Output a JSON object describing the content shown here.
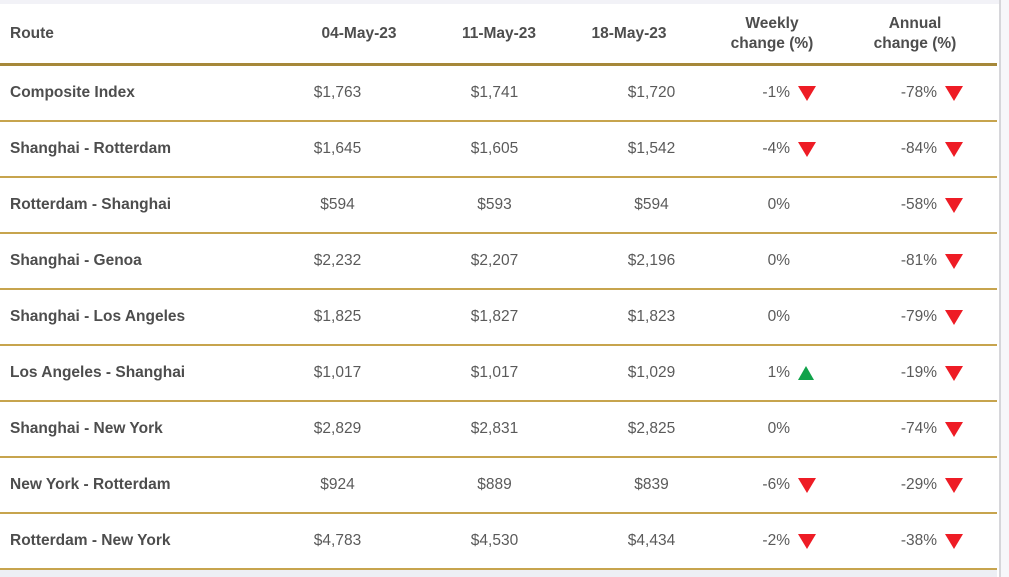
{
  "colors": {
    "header_rule_gold": "#a6883a",
    "row_rule_gold": "#c7a44e",
    "negative_red": "#ee1c25",
    "positive_green": "#10a24a",
    "heading_text": "#4d4d4d",
    "value_text": "#5a5a5a"
  },
  "chart_data": {
    "type": "table",
    "columns": [
      "Route",
      "04-May-23",
      "11-May-23",
      "18-May-23",
      "Weekly change (%)",
      "Annual change (%)"
    ],
    "header": {
      "route": "Route",
      "dates": [
        "04-May-23",
        "11-May-23",
        "18-May-23"
      ],
      "weekly_line1": "Weekly",
      "weekly_line2": "change (%)",
      "annual_line1": "Annual",
      "annual_line2": "change (%)"
    },
    "rows": [
      {
        "route": "Composite Index",
        "rates": [
          "$1,763",
          "$1,741",
          "$1,720"
        ],
        "weekly_pct": "-1%",
        "weekly_dir": "down",
        "annual_pct": "-78%",
        "annual_dir": "down"
      },
      {
        "route": "Shanghai - Rotterdam",
        "rates": [
          "$1,645",
          "$1,605",
          "$1,542"
        ],
        "weekly_pct": "-4%",
        "weekly_dir": "down",
        "annual_pct": "-84%",
        "annual_dir": "down"
      },
      {
        "route": "Rotterdam - Shanghai",
        "rates": [
          "$594",
          "$593",
          "$594"
        ],
        "weekly_pct": "0%",
        "weekly_dir": "none",
        "annual_pct": "-58%",
        "annual_dir": "down"
      },
      {
        "route": "Shanghai - Genoa",
        "rates": [
          "$2,232",
          "$2,207",
          "$2,196"
        ],
        "weekly_pct": "0%",
        "weekly_dir": "none",
        "annual_pct": "-81%",
        "annual_dir": "down"
      },
      {
        "route": "Shanghai - Los Angeles",
        "rates": [
          "$1,825",
          "$1,827",
          "$1,823"
        ],
        "weekly_pct": "0%",
        "weekly_dir": "none",
        "annual_pct": "-79%",
        "annual_dir": "down"
      },
      {
        "route": "Los Angeles - Shanghai",
        "rates": [
          "$1,017",
          "$1,017",
          "$1,029"
        ],
        "weekly_pct": "1%",
        "weekly_dir": "up",
        "annual_pct": "-19%",
        "annual_dir": "down"
      },
      {
        "route": "Shanghai - New York",
        "rates": [
          "$2,829",
          "$2,831",
          "$2,825"
        ],
        "weekly_pct": "0%",
        "weekly_dir": "none",
        "annual_pct": "-74%",
        "annual_dir": "down"
      },
      {
        "route": "New York - Rotterdam",
        "rates": [
          "$924",
          "$889",
          "$839"
        ],
        "weekly_pct": "-6%",
        "weekly_dir": "down",
        "annual_pct": "-29%",
        "annual_dir": "down"
      },
      {
        "route": "Rotterdam - New York",
        "rates": [
          "$4,783",
          "$4,530",
          "$4,434"
        ],
        "weekly_pct": "-2%",
        "weekly_dir": "down",
        "annual_pct": "-38%",
        "annual_dir": "down"
      }
    ]
  }
}
